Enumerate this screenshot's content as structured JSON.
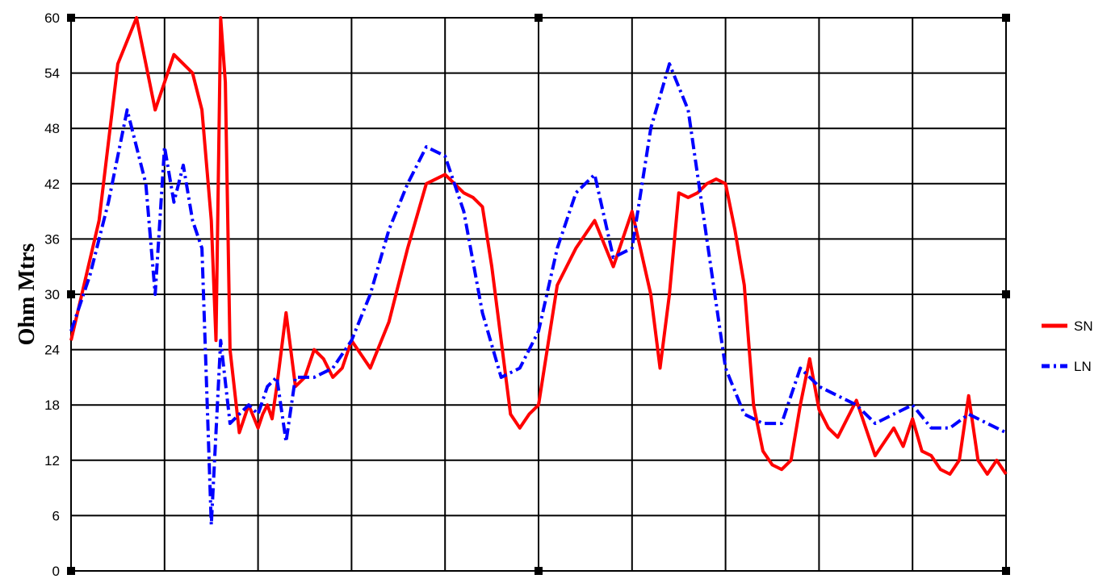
{
  "chart_data": {
    "type": "line",
    "title": "",
    "xlabel": "",
    "ylabel": "Ohm Mtrs",
    "ylim": [
      0,
      60
    ],
    "yticks": [
      0,
      6,
      12,
      18,
      24,
      30,
      36,
      42,
      48,
      54,
      60
    ],
    "x_gridlines": 10,
    "grid": true,
    "legend_position": "right",
    "colors": {
      "SN": "#ff0000",
      "LN": "#0000ff"
    },
    "series": [
      {
        "name": "SN",
        "style": "solid",
        "color": "#ff0000",
        "x": [
          0,
          0.3,
          0.5,
          0.7,
          0.9,
          1.1,
          1.3,
          1.4,
          1.5,
          1.55,
          1.6,
          1.65,
          1.7,
          1.8,
          1.9,
          2.0,
          2.05,
          2.1,
          2.15,
          2.2,
          2.3,
          2.4,
          2.5,
          2.6,
          2.7,
          2.8,
          2.9,
          3.0,
          3.2,
          3.4,
          3.6,
          3.8,
          4.0,
          4.2,
          4.3,
          4.4,
          4.5,
          4.6,
          4.7,
          4.8,
          4.9,
          5.0,
          5.2,
          5.4,
          5.6,
          5.8,
          6.0,
          6.2,
          6.3,
          6.4,
          6.5,
          6.6,
          6.7,
          6.8,
          6.9,
          7.0,
          7.1,
          7.2,
          7.3,
          7.4,
          7.5,
          7.6,
          7.7,
          7.8,
          7.9,
          8.0,
          8.1,
          8.2,
          8.4,
          8.6,
          8.8,
          8.9,
          9.0,
          9.1,
          9.2,
          9.3,
          9.4,
          9.5,
          9.6,
          9.7,
          9.8,
          9.9,
          10.0
        ],
        "values": [
          25,
          38,
          55,
          60,
          50,
          56,
          54,
          50,
          38,
          25,
          60,
          53,
          24,
          15,
          18,
          15.5,
          17,
          18,
          16.5,
          20,
          28,
          20,
          21,
          24,
          23,
          21,
          22,
          25,
          22,
          27,
          35,
          42,
          43,
          41,
          40.5,
          39.5,
          33,
          25,
          17,
          15.5,
          17,
          18,
          31,
          35,
          38,
          33,
          39,
          30,
          22,
          30,
          41,
          40.5,
          41,
          42,
          42.5,
          42,
          37,
          31,
          18,
          13,
          11.5,
          11,
          12,
          18,
          23,
          17.5,
          15.5,
          14.5,
          18.5,
          12.5,
          15.5,
          13.5,
          16.5,
          13,
          12.5,
          11,
          10.5,
          12,
          19,
          12,
          10.5,
          12,
          10.5
        ]
      },
      {
        "name": "LN",
        "style": "dashed",
        "color": "#0000ff",
        "x": [
          0,
          0.2,
          0.4,
          0.6,
          0.8,
          0.9,
          1.0,
          1.1,
          1.2,
          1.3,
          1.4,
          1.5,
          1.6,
          1.7,
          1.8,
          1.9,
          2.0,
          2.1,
          2.2,
          2.3,
          2.4,
          2.5,
          2.6,
          2.8,
          3.0,
          3.2,
          3.4,
          3.6,
          3.8,
          4.0,
          4.2,
          4.4,
          4.6,
          4.8,
          5.0,
          5.2,
          5.4,
          5.6,
          5.8,
          6.0,
          6.2,
          6.4,
          6.6,
          6.8,
          7.0,
          7.2,
          7.4,
          7.6,
          7.8,
          8.0,
          8.2,
          8.4,
          8.6,
          8.8,
          9.0,
          9.2,
          9.4,
          9.6,
          9.8,
          10.0
        ],
        "values": [
          26,
          32,
          40,
          50,
          42,
          30,
          46,
          40,
          44,
          38,
          35,
          5,
          25,
          16,
          17,
          18,
          17,
          20,
          21,
          14,
          21,
          21,
          21,
          22,
          25,
          30,
          37,
          42,
          46,
          45,
          39,
          28,
          21,
          22,
          26,
          35,
          41,
          43,
          34,
          35,
          48,
          55,
          50,
          36,
          22,
          17,
          16,
          16,
          22,
          20,
          19,
          18,
          16,
          17,
          18,
          15.5,
          15.5,
          17,
          16,
          15
        ]
      }
    ]
  }
}
